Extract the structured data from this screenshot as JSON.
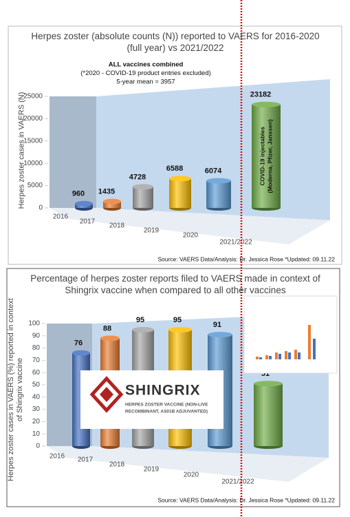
{
  "chart_data": [
    {
      "type": "bar3d",
      "title": "Herpes zoster (absolute counts (N)) reported to VAERS for 2016-2020 (full year) vs 2021/2022",
      "annotations": [
        "ALL vaccines combined",
        "(*2020 - COVID-19 product entries excluded)",
        "5-year mean = 3957"
      ],
      "y_label": "Herpes zoster cases in VAERS (N)",
      "categories": [
        "2016",
        "2017",
        "2018",
        "2019",
        "2020",
        "2021/2022"
      ],
      "values": [
        960,
        1435,
        4728,
        6588,
        6074,
        23182
      ],
      "colors": [
        "#4472c4",
        "#ed7d31",
        "#a5a5a5",
        "#ffc000",
        "#5b9bd5",
        "#70ad47"
      ],
      "bar_annotation": [
        "COVID-19 injectables",
        "(Moderna, Pfizer, Janssen)"
      ],
      "ylim": [
        0,
        25000
      ],
      "yticks": [
        0,
        5000,
        10000,
        15000,
        20000,
        25000
      ],
      "source": "Source: VAERS Data/Analysis: Dr. Jessica Rose *Updated: 09.11.22"
    },
    {
      "type": "bar3d",
      "title": "Percentage of herpes zoster reports filed to VAERS made in context of Shingrix vaccine when compared to all other vaccines",
      "y_label": "Herpes zoster cases in VAERS (%) reported in context of Shingrix vaccine",
      "categories": [
        "2016",
        "2017",
        "2018",
        "2019",
        "2020",
        "2021/2022"
      ],
      "values": [
        76,
        88,
        95,
        95,
        91,
        51
      ],
      "colors": [
        "#4472c4",
        "#ed7d31",
        "#a5a5a5",
        "#ffc000",
        "#5b9bd5",
        "#70ad47"
      ],
      "logo": {
        "name": "SHINGRIX",
        "lines": [
          "HERPES ZOSTER VACCINE (NON-LIVE",
          "RECOMBINANT, AS01B ADJUVANTED)"
        ]
      },
      "ylim": [
        0,
        100
      ],
      "yticks": [
        0,
        10,
        20,
        30,
        40,
        50,
        60,
        70,
        80,
        90,
        100
      ],
      "source": "Source: VAERS Data/Analysis: Dr. Jessica Rose *Updated: 09.11.22"
    }
  ]
}
